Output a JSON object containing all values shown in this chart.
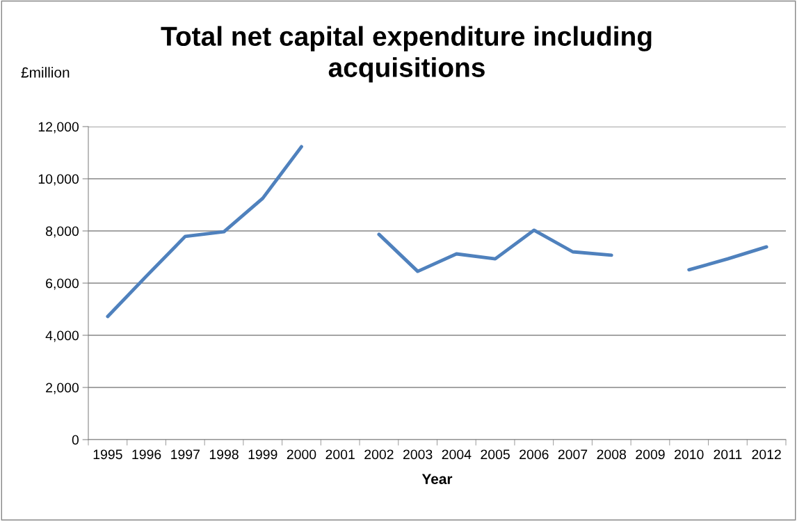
{
  "chart_data": {
    "type": "line",
    "title": "Total net capital expenditure including\nacquisitions",
    "ylabel": "£million",
    "xlabel": "Year",
    "categories": [
      "1995",
      "1996",
      "1997",
      "1998",
      "1999",
      "2000",
      "2001",
      "2002",
      "2003",
      "2004",
      "2005",
      "2006",
      "2007",
      "2008",
      "2009",
      "2010",
      "2011",
      "2012"
    ],
    "series": [
      {
        "color": "#4f81bd",
        "values": [
          4720,
          6270,
          7790,
          7970,
          9250,
          11230,
          null,
          7870,
          6450,
          7120,
          6930,
          8030,
          7200,
          7070,
          null,
          6510,
          6930,
          7390
        ]
      }
    ],
    "ylim": [
      0,
      12000
    ],
    "yticks": [
      {
        "value": 0,
        "label": "0"
      },
      {
        "value": 2000,
        "label": "2,000"
      },
      {
        "value": 4000,
        "label": "4,000"
      },
      {
        "value": 6000,
        "label": "6,000"
      },
      {
        "value": 8000,
        "label": "8,000"
      },
      {
        "value": 10000,
        "label": "10,000"
      },
      {
        "value": 12000,
        "label": "12,000"
      }
    ],
    "grid": "y",
    "legend": false,
    "marker": "none",
    "line_style": "solid"
  }
}
